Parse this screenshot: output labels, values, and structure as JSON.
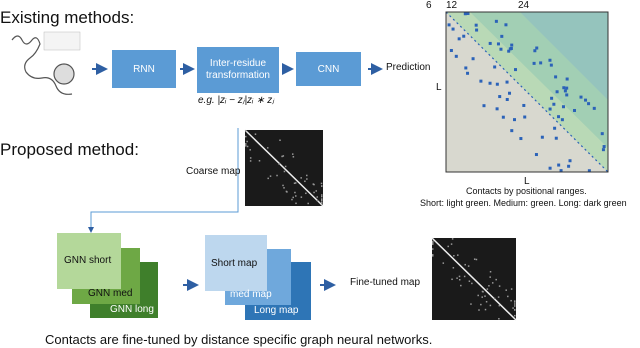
{
  "existing": {
    "title": "Existing methods:",
    "steps": [
      "RNN",
      "Inter-residue transformation",
      "CNN"
    ],
    "formula": "e.g. |zᵢ − zⱼ|zᵢ ∗ zⱼ",
    "output": "Prediction"
  },
  "contact_map": {
    "top_ticks": [
      "6",
      "12",
      "24"
    ],
    "y_label": "L",
    "x_label": "L",
    "caption": [
      "Contacts by positional ranges.",
      "Short: light green. Medium: green. Long: dark green"
    ]
  },
  "proposed": {
    "title": "Proposed method:",
    "coarse_label": "Coarse map",
    "gnns": [
      "GNN short",
      "GNN med",
      "GNN long"
    ],
    "maps": [
      "Short map",
      "med map",
      "Long map"
    ],
    "fine_label": "Fine-tuned map",
    "caption": "Contacts are fine-tuned by distance specific graph neural networks."
  }
}
